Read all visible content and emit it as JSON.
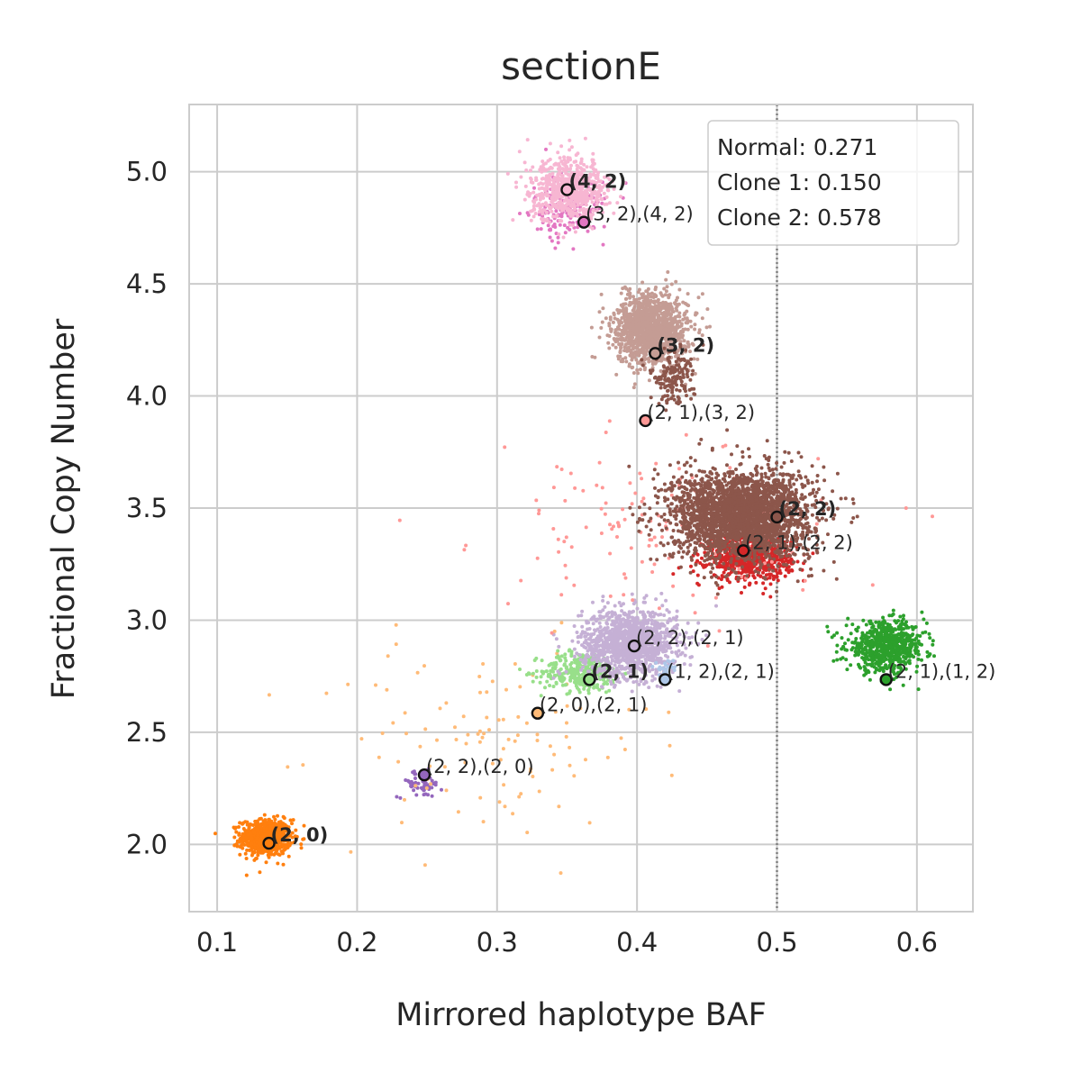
{
  "chart_data": {
    "type": "scatter",
    "title": "sectionE",
    "xlabel": "Mirrored haplotype BAF",
    "ylabel": "Fractional Copy Number",
    "xlim": [
      0.08,
      0.64
    ],
    "ylim": [
      1.7,
      5.3
    ],
    "xticks": [
      0.1,
      0.2,
      0.3,
      0.4,
      0.5,
      0.6
    ],
    "xtick_labels": [
      "0.1",
      "0.2",
      "0.3",
      "0.4",
      "0.5",
      "0.6"
    ],
    "yticks": [
      2.0,
      2.5,
      3.0,
      3.5,
      4.0,
      4.5,
      5.0
    ],
    "ytick_labels": [
      "2.0",
      "2.5",
      "3.0",
      "3.5",
      "4.0",
      "4.5",
      "5.0"
    ],
    "grid": true,
    "reference_line": {
      "x": 0.5,
      "style": "dotted",
      "color": "#808080"
    },
    "legend": {
      "placement": "top-right",
      "entries": [
        "Normal: 0.271",
        "Clone 1: 0.150",
        "Clone 2: 0.578"
      ]
    },
    "clusters": [
      {
        "color": "#ff7f0e",
        "cx": 0.135,
        "cy": 2.03,
        "sx": 0.009,
        "sy": 0.04,
        "n": 700
      },
      {
        "color": "#9467bd",
        "cx": 0.245,
        "cy": 2.27,
        "sx": 0.008,
        "sy": 0.03,
        "n": 60
      },
      {
        "color": "#ffbb78",
        "cx": 0.29,
        "cy": 2.45,
        "sx": 0.06,
        "sy": 0.22,
        "n": 110
      },
      {
        "color": "#98df8a",
        "cx": 0.36,
        "cy": 2.77,
        "sx": 0.014,
        "sy": 0.045,
        "n": 320
      },
      {
        "color": "#c5b0d5",
        "cx": 0.395,
        "cy": 2.9,
        "sx": 0.017,
        "sy": 0.075,
        "n": 1300
      },
      {
        "color": "#2ca02c",
        "cx": 0.578,
        "cy": 2.88,
        "sx": 0.014,
        "sy": 0.055,
        "n": 700
      },
      {
        "color": "#d62728",
        "cx": 0.48,
        "cy": 3.28,
        "sx": 0.015,
        "sy": 0.05,
        "n": 700
      },
      {
        "color": "#ff9896",
        "cx": 0.415,
        "cy": 3.4,
        "sx": 0.06,
        "sy": 0.18,
        "n": 140
      },
      {
        "color": "#8c564b",
        "cx": 0.475,
        "cy": 3.47,
        "sx": 0.025,
        "sy": 0.1,
        "n": 2600
      },
      {
        "color": "#c49c94",
        "cx": 0.41,
        "cy": 4.3,
        "sx": 0.013,
        "sy": 0.08,
        "n": 1300
      },
      {
        "color": "#8c564b",
        "cx": 0.425,
        "cy": 4.08,
        "sx": 0.008,
        "sy": 0.06,
        "n": 160
      },
      {
        "color": "#e377c2",
        "cx": 0.35,
        "cy": 4.83,
        "sx": 0.013,
        "sy": 0.07,
        "n": 180
      },
      {
        "color": "#f7b6d2",
        "cx": 0.352,
        "cy": 4.92,
        "sx": 0.014,
        "sy": 0.07,
        "n": 650
      },
      {
        "color": "#aec7e8",
        "cx": 0.42,
        "cy": 2.78,
        "sx": 0.004,
        "sy": 0.02,
        "n": 25
      }
    ],
    "annotations": [
      {
        "x": 0.137,
        "y": 2.005,
        "fill": "#ff7f0e",
        "text": "(2, 0)",
        "bold": true
      },
      {
        "x": 0.248,
        "y": 2.31,
        "fill": "#9467bd",
        "text": "(2, 2),(2, 0)",
        "bold": false
      },
      {
        "x": 0.329,
        "y": 2.585,
        "fill": "#ffbb78",
        "text": "(2, 0),(2, 1)",
        "bold": false
      },
      {
        "x": 0.366,
        "y": 2.735,
        "fill": "#98df8a",
        "text": "(2, 1)",
        "bold": true
      },
      {
        "x": 0.42,
        "y": 2.735,
        "fill": "#aec7e8",
        "text": "(1, 2),(2, 1)",
        "bold": false
      },
      {
        "x": 0.398,
        "y": 2.885,
        "fill": "#c5b0d5",
        "text": "(2, 2),(2, 1)",
        "bold": false
      },
      {
        "x": 0.578,
        "y": 2.735,
        "fill": "#2ca02c",
        "text": "(2, 1),(1, 2)",
        "bold": false
      },
      {
        "x": 0.476,
        "y": 3.31,
        "fill": "#d62728",
        "text": "(2, 1),(2, 2)",
        "bold": false
      },
      {
        "x": 0.5,
        "y": 3.46,
        "fill": "#8c564b",
        "text": "(2, 2)",
        "bold": true
      },
      {
        "x": 0.406,
        "y": 3.89,
        "fill": "#ff9896",
        "text": "(2, 1),(3, 2)",
        "bold": false
      },
      {
        "x": 0.413,
        "y": 4.19,
        "fill": "#c49c94",
        "text": "(3, 2)",
        "bold": true
      },
      {
        "x": 0.362,
        "y": 4.775,
        "fill": "#e377c2",
        "text": "(3, 2),(4, 2)",
        "bold": false
      },
      {
        "x": 0.35,
        "y": 4.92,
        "fill": "#f7b6d2",
        "text": "(4, 2)",
        "bold": true
      }
    ]
  }
}
